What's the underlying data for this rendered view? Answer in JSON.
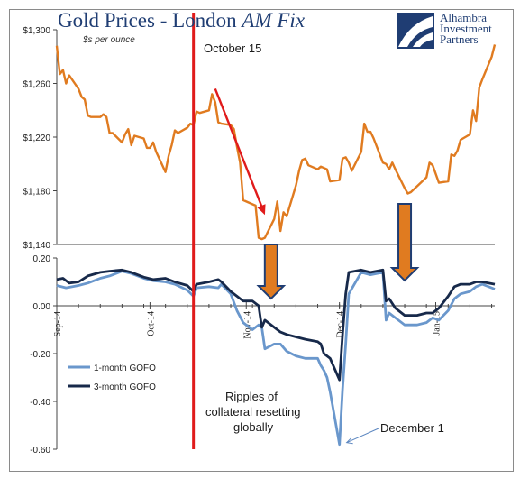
{
  "header": {
    "title_main": "Gold Prices - London ",
    "title_italic": "AM Fix",
    "subtitle": "$s per ounce"
  },
  "logo": {
    "lines": [
      "Alhambra",
      "Investment",
      "Partners"
    ]
  },
  "annotations": {
    "october": "October 15",
    "ripples": [
      "Ripples of",
      "collateral resetting",
      "globally"
    ],
    "december": "December 1"
  },
  "colors": {
    "gold": "#e07b20",
    "gofo1": "#6a97cc",
    "gofo3": "#17294a",
    "marker_line": "#e01b1b",
    "arrow_down_fill": "#e07b20",
    "arrow_down_stroke": "#1f3d73",
    "title": "#1f3d73"
  },
  "chart_data": [
    {
      "type": "line",
      "title": "Gold Prices - London AM Fix",
      "subtitle": "$s per ounce",
      "ylim": [
        1140,
        1300
      ],
      "yticks": [
        "$1,300",
        "$1,260",
        "$1,220",
        "$1,180",
        "$1,140"
      ],
      "ytick_values": [
        1300,
        1260,
        1220,
        1180,
        1140
      ],
      "grid": false,
      "series": [
        {
          "points": [
            [
              "2014-09-01",
              1288
            ],
            [
              "2014-09-02",
              1267
            ],
            [
              "2014-09-03",
              1270
            ],
            [
              "2014-09-04",
              1260
            ],
            [
              "2014-09-05",
              1266
            ],
            [
              "2014-09-08",
              1256
            ],
            [
              "2014-09-09",
              1250
            ],
            [
              "2014-09-10",
              1248
            ],
            [
              "2014-09-11",
              1236
            ],
            [
              "2014-09-12",
              1235
            ],
            [
              "2014-09-15",
              1235
            ],
            [
              "2014-09-16",
              1237
            ],
            [
              "2014-09-17",
              1235
            ],
            [
              "2014-09-18",
              1223
            ],
            [
              "2014-09-19",
              1223
            ],
            [
              "2014-09-22",
              1216
            ],
            [
              "2014-09-23",
              1222
            ],
            [
              "2014-09-24",
              1226
            ],
            [
              "2014-09-25",
              1214
            ],
            [
              "2014-09-26",
              1221
            ],
            [
              "2014-09-29",
              1219
            ],
            [
              "2014-09-30",
              1212
            ],
            [
              "2014-10-01",
              1212
            ],
            [
              "2014-10-02",
              1216
            ],
            [
              "2014-10-03",
              1209
            ],
            [
              "2014-10-06",
              1194
            ],
            [
              "2014-10-07",
              1206
            ],
            [
              "2014-10-08",
              1214
            ],
            [
              "2014-10-09",
              1225
            ],
            [
              "2014-10-10",
              1223
            ],
            [
              "2014-10-13",
              1227
            ],
            [
              "2014-10-14",
              1230
            ],
            [
              "2014-10-15",
              1229
            ],
            [
              "2014-10-16",
              1239
            ],
            [
              "2014-10-17",
              1238
            ],
            [
              "2014-10-20",
              1240
            ],
            [
              "2014-10-21",
              1252
            ],
            [
              "2014-10-22",
              1246
            ],
            [
              "2014-10-23",
              1231
            ],
            [
              "2014-10-24",
              1230
            ],
            [
              "2014-10-27",
              1229
            ],
            [
              "2014-10-28",
              1226
            ],
            [
              "2014-10-29",
              1213
            ],
            [
              "2014-10-30",
              1201
            ],
            [
              "2014-10-31",
              1173
            ],
            [
              "2014-11-03",
              1170
            ],
            [
              "2014-11-04",
              1169
            ],
            [
              "2014-11-05",
              1145
            ],
            [
              "2014-11-06",
              1144
            ],
            [
              "2014-11-07",
              1145
            ],
            [
              "2014-11-10",
              1159
            ],
            [
              "2014-11-11",
              1172
            ],
            [
              "2014-11-12",
              1150
            ],
            [
              "2014-11-13",
              1164
            ],
            [
              "2014-11-14",
              1161
            ],
            [
              "2014-11-17",
              1184
            ],
            [
              "2014-11-18",
              1195
            ],
            [
              "2014-11-19",
              1203
            ],
            [
              "2014-11-20",
              1204
            ],
            [
              "2014-11-21",
              1199
            ],
            [
              "2014-11-24",
              1196
            ],
            [
              "2014-11-25",
              1198
            ],
            [
              "2014-11-26",
              1197
            ],
            [
              "2014-11-27",
              1196
            ],
            [
              "2014-11-28",
              1187
            ],
            [
              "2014-12-01",
              1188
            ],
            [
              "2014-12-02",
              1204
            ],
            [
              "2014-12-03",
              1205
            ],
            [
              "2014-12-04",
              1201
            ],
            [
              "2014-12-05",
              1195
            ],
            [
              "2014-12-08",
              1209
            ],
            [
              "2014-12-09",
              1230
            ],
            [
              "2014-12-10",
              1224
            ],
            [
              "2014-12-11",
              1224
            ],
            [
              "2014-12-12",
              1219
            ],
            [
              "2014-12-15",
              1201
            ],
            [
              "2014-12-16",
              1200
            ],
            [
              "2014-12-17",
              1196
            ],
            [
              "2014-12-18",
              1201
            ],
            [
              "2014-12-19",
              1196
            ],
            [
              "2014-12-22",
              1182
            ],
            [
              "2014-12-23",
              1178
            ],
            [
              "2014-12-24",
              1179
            ],
            [
              "2014-12-29",
              1190
            ],
            [
              "2014-12-30",
              1201
            ],
            [
              "2014-12-31",
              1199
            ],
            [
              "2015-01-02",
              1186
            ],
            [
              "2015-01-05",
              1187
            ],
            [
              "2015-01-06",
              1207
            ],
            [
              "2015-01-07",
              1206
            ],
            [
              "2015-01-08",
              1210
            ],
            [
              "2015-01-09",
              1218
            ],
            [
              "2015-01-12",
              1222
            ],
            [
              "2015-01-13",
              1240
            ],
            [
              "2015-01-14",
              1232
            ],
            [
              "2015-01-15",
              1257
            ],
            [
              "2015-01-16",
              1263
            ],
            [
              "2015-01-19",
              1280
            ],
            [
              "2015-01-20",
              1289
            ]
          ]
        }
      ]
    },
    {
      "type": "line",
      "ylim": [
        -0.6,
        0.2
      ],
      "yticks": [
        "0.20",
        "0.00",
        "-0.20",
        "-0.40",
        "-0.60"
      ],
      "ytick_values": [
        0.2,
        0.0,
        -0.2,
        -0.4,
        -0.6
      ],
      "xticks": [
        "Sep-14",
        "Oct-14",
        "Nov-14",
        "Dec-14",
        "Jan-15"
      ],
      "xtick_values": [
        "2014-09-01",
        "2014-10-01",
        "2014-11-01",
        "2014-12-01",
        "2015-01-01"
      ],
      "legend": "left",
      "grid": false,
      "series": [
        {
          "name": "1-month GOFO",
          "points": [
            [
              "2014-09-01",
              0.085
            ],
            [
              "2014-09-04",
              0.075
            ],
            [
              "2014-09-08",
              0.085
            ],
            [
              "2014-09-11",
              0.095
            ],
            [
              "2014-09-15",
              0.115
            ],
            [
              "2014-09-18",
              0.125
            ],
            [
              "2014-09-22",
              0.145
            ],
            [
              "2014-09-25",
              0.135
            ],
            [
              "2014-09-29",
              0.115
            ],
            [
              "2014-10-02",
              0.105
            ],
            [
              "2014-10-06",
              0.1
            ],
            [
              "2014-10-09",
              0.09
            ],
            [
              "2014-10-13",
              0.065
            ],
            [
              "2014-10-15",
              0.04
            ],
            [
              "2014-10-16",
              0.075
            ],
            [
              "2014-10-20",
              0.08
            ],
            [
              "2014-10-23",
              0.075
            ],
            [
              "2014-10-24",
              0.09
            ],
            [
              "2014-10-27",
              0.05
            ],
            [
              "2014-10-29",
              -0.02
            ],
            [
              "2014-10-31",
              -0.07
            ],
            [
              "2014-11-03",
              -0.1
            ],
            [
              "2014-11-05",
              -0.08
            ],
            [
              "2014-11-06",
              -0.09
            ],
            [
              "2014-11-07",
              -0.18
            ],
            [
              "2014-11-10",
              -0.16
            ],
            [
              "2014-11-12",
              -0.16
            ],
            [
              "2014-11-14",
              -0.19
            ],
            [
              "2014-11-17",
              -0.21
            ],
            [
              "2014-11-20",
              -0.22
            ],
            [
              "2014-11-24",
              -0.22
            ],
            [
              "2014-11-25",
              -0.25
            ],
            [
              "2014-11-26",
              -0.27
            ],
            [
              "2014-11-27",
              -0.3
            ],
            [
              "2014-11-28",
              -0.36
            ],
            [
              "2014-12-01",
              -0.58
            ],
            [
              "2014-12-02",
              -0.35
            ],
            [
              "2014-12-03",
              -0.16
            ],
            [
              "2014-12-04",
              0.05
            ],
            [
              "2014-12-08",
              0.14
            ],
            [
              "2014-12-11",
              0.13
            ],
            [
              "2014-12-15",
              0.14
            ],
            [
              "2014-12-16",
              -0.06
            ],
            [
              "2014-12-17",
              -0.03
            ],
            [
              "2014-12-19",
              -0.05
            ],
            [
              "2014-12-22",
              -0.08
            ],
            [
              "2014-12-26",
              -0.08
            ],
            [
              "2014-12-29",
              -0.07
            ],
            [
              "2014-12-31",
              -0.05
            ],
            [
              "2015-01-02",
              -0.06
            ],
            [
              "2015-01-05",
              -0.02
            ],
            [
              "2015-01-07",
              0.03
            ],
            [
              "2015-01-09",
              0.05
            ],
            [
              "2015-01-12",
              0.06
            ],
            [
              "2015-01-14",
              0.08
            ],
            [
              "2015-01-16",
              0.09
            ],
            [
              "2015-01-20",
              0.07
            ]
          ]
        },
        {
          "name": "3-month GOFO",
          "points": [
            [
              "2014-09-01",
              0.11
            ],
            [
              "2014-09-03",
              0.115
            ],
            [
              "2014-09-05",
              0.095
            ],
            [
              "2014-09-08",
              0.1
            ],
            [
              "2014-09-11",
              0.125
            ],
            [
              "2014-09-15",
              0.14
            ],
            [
              "2014-09-18",
              0.145
            ],
            [
              "2014-09-22",
              0.15
            ],
            [
              "2014-09-25",
              0.14
            ],
            [
              "2014-09-29",
              0.12
            ],
            [
              "2014-10-02",
              0.11
            ],
            [
              "2014-10-06",
              0.115
            ],
            [
              "2014-10-09",
              0.1
            ],
            [
              "2014-10-13",
              0.085
            ],
            [
              "2014-10-15",
              0.06
            ],
            [
              "2014-10-16",
              0.09
            ],
            [
              "2014-10-20",
              0.1
            ],
            [
              "2014-10-23",
              0.11
            ],
            [
              "2014-10-24",
              0.1
            ],
            [
              "2014-10-27",
              0.06
            ],
            [
              "2014-10-29",
              0.04
            ],
            [
              "2014-10-31",
              0.02
            ],
            [
              "2014-11-03",
              0.02
            ],
            [
              "2014-11-05",
              0.0
            ],
            [
              "2014-11-06",
              -0.09
            ],
            [
              "2014-11-07",
              -0.06
            ],
            [
              "2014-11-10",
              -0.09
            ],
            [
              "2014-11-12",
              -0.11
            ],
            [
              "2014-11-14",
              -0.12
            ],
            [
              "2014-11-17",
              -0.13
            ],
            [
              "2014-11-20",
              -0.14
            ],
            [
              "2014-11-24",
              -0.15
            ],
            [
              "2014-11-25",
              -0.16
            ],
            [
              "2014-11-26",
              -0.2
            ],
            [
              "2014-11-28",
              -0.22
            ],
            [
              "2014-12-01",
              -0.31
            ],
            [
              "2014-12-02",
              -0.12
            ],
            [
              "2014-12-03",
              0.05
            ],
            [
              "2014-12-04",
              0.14
            ],
            [
              "2014-12-08",
              0.15
            ],
            [
              "2014-12-11",
              0.14
            ],
            [
              "2014-12-15",
              0.15
            ],
            [
              "2014-12-16",
              0.02
            ],
            [
              "2014-12-17",
              0.03
            ],
            [
              "2014-12-19",
              -0.01
            ],
            [
              "2014-12-22",
              -0.04
            ],
            [
              "2014-12-26",
              -0.04
            ],
            [
              "2014-12-29",
              -0.03
            ],
            [
              "2014-12-31",
              -0.03
            ],
            [
              "2015-01-02",
              -0.01
            ],
            [
              "2015-01-05",
              0.04
            ],
            [
              "2015-01-07",
              0.08
            ],
            [
              "2015-01-09",
              0.09
            ],
            [
              "2015-01-12",
              0.09
            ],
            [
              "2015-01-14",
              0.1
            ],
            [
              "2015-01-16",
              0.1
            ],
            [
              "2015-01-20",
              0.09
            ]
          ]
        }
      ]
    }
  ]
}
